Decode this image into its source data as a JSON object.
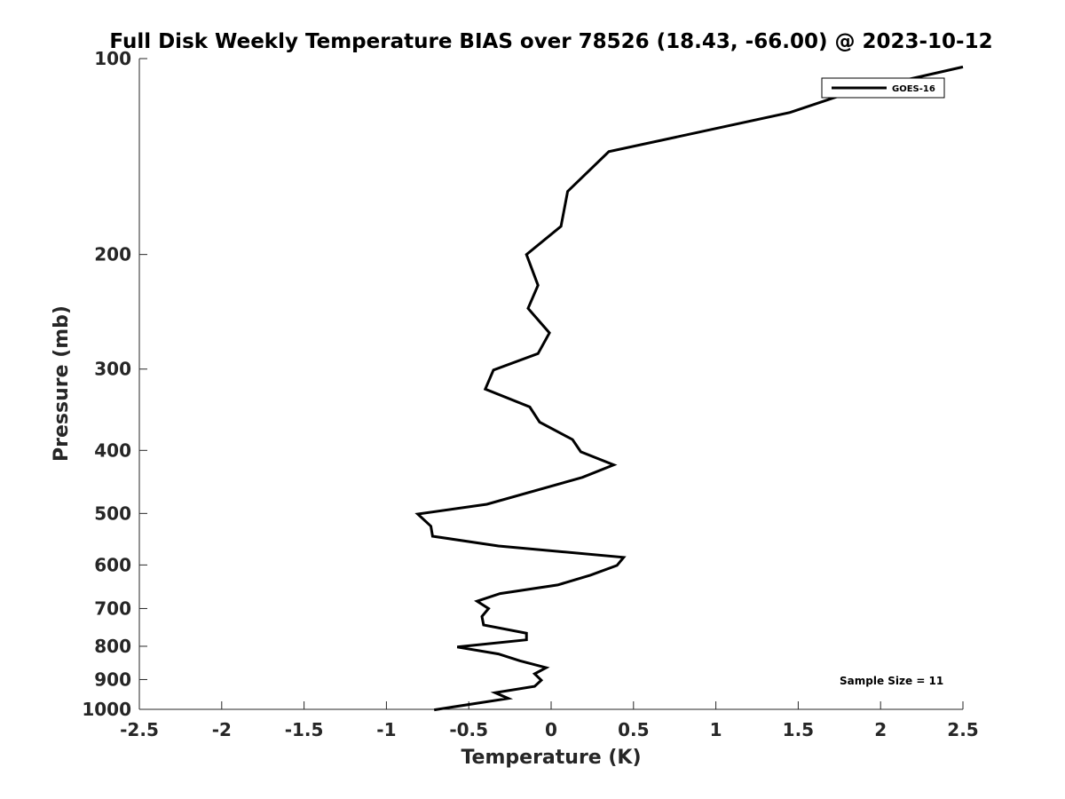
{
  "chart_data": {
    "type": "line",
    "title": "Full Disk Weekly Temperature BIAS over 78526 (18.43, -66.00) @ 2023-10-12",
    "xlabel": "Temperature (K)",
    "ylabel": "Pressure (mb)",
    "xlim": [
      -2.5,
      2.5
    ],
    "ylim": [
      100,
      1000
    ],
    "y_scale": "log",
    "y_reversed": true,
    "grid": false,
    "legend_position": "top-right",
    "x_ticks": [
      "-2.5",
      "-2",
      "-1.5",
      "-1",
      "-0.5",
      "0",
      "0.5",
      "1",
      "1.5",
      "2",
      "2.5"
    ],
    "y_ticks": [
      "100",
      "200",
      "300",
      "400",
      "500",
      "600",
      "700",
      "800",
      "900",
      "1000"
    ],
    "annotation": "Sample Size = 11",
    "line_color": "#000000",
    "series": [
      {
        "name": "GOES-16",
        "points": [
          [
            2.5,
            103
          ],
          [
            1.8,
            113
          ],
          [
            1.45,
            121
          ],
          [
            0.35,
            139
          ],
          [
            0.1,
            160
          ],
          [
            0.06,
            181
          ],
          [
            -0.15,
            200
          ],
          [
            -0.08,
            223
          ],
          [
            -0.14,
            242
          ],
          [
            -0.01,
            264
          ],
          [
            -0.08,
            284
          ],
          [
            -0.35,
            301
          ],
          [
            -0.4,
            322
          ],
          [
            -0.13,
            343
          ],
          [
            -0.07,
            362
          ],
          [
            0.13,
            385
          ],
          [
            0.18,
            402
          ],
          [
            0.38,
            421
          ],
          [
            0.19,
            440
          ],
          [
            -0.39,
            484
          ],
          [
            -0.81,
            501
          ],
          [
            -0.73,
            523
          ],
          [
            -0.72,
            542
          ],
          [
            -0.32,
            561
          ],
          [
            0.44,
            584
          ],
          [
            0.4,
            601
          ],
          [
            0.24,
            622
          ],
          [
            0.04,
            644
          ],
          [
            -0.31,
            664
          ],
          [
            -0.45,
            682
          ],
          [
            -0.38,
            700
          ],
          [
            -0.42,
            720
          ],
          [
            -0.41,
            742
          ],
          [
            -0.15,
            764
          ],
          [
            -0.15,
            782
          ],
          [
            -0.57,
            802
          ],
          [
            -0.32,
            822
          ],
          [
            -0.19,
            842
          ],
          [
            -0.03,
            863
          ],
          [
            -0.1,
            882
          ],
          [
            -0.06,
            902
          ],
          [
            -0.1,
            922
          ],
          [
            -0.34,
            943
          ],
          [
            -0.26,
            962
          ],
          [
            -0.71,
            1002
          ]
        ]
      }
    ]
  }
}
